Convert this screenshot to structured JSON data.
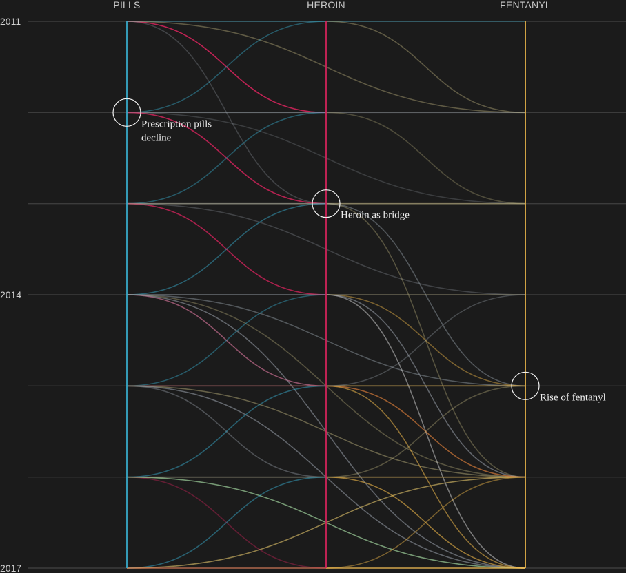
{
  "colors": {
    "background": "#1b1b1b",
    "grid": "#3c3c3c",
    "pills": "#37a8c8",
    "heroin": "#d0245a",
    "fentanyl": "#efb84a",
    "neutral": "#9aa3ad"
  },
  "chart_data": {
    "type": "line",
    "title": "",
    "xlabel": "",
    "ylabel": "",
    "columns": [
      "PILLS",
      "HEROIN",
      "FENTANYL"
    ],
    "years": [
      2011,
      2012,
      2013,
      2014,
      2015,
      2016,
      2017
    ],
    "year_tick_labels": [
      "2011",
      "",
      "",
      "2014",
      "",
      "",
      "2017"
    ],
    "ylim": [
      2011,
      2017
    ],
    "series": [
      {
        "from": "PILLS",
        "from_year": 2011,
        "to": "HEROIN",
        "to_year": 2012,
        "color": "#d0245a",
        "opacity": 0.8
      },
      {
        "from": "PILLS",
        "from_year": 2011,
        "to": "HEROIN",
        "to_year": 2012,
        "color": "#d0245a",
        "opacity": 0.5
      },
      {
        "from": "PILLS",
        "from_year": 2011,
        "to": "FENTANYL",
        "to_year": 2011,
        "color": "#37a8c8",
        "opacity": 0.45
      },
      {
        "from": "PILLS",
        "from_year": 2011,
        "to": "FENTANYL",
        "to_year": 2012,
        "color": "#b3a978",
        "opacity": 0.45
      },
      {
        "from": "PILLS",
        "from_year": 2011,
        "to": "HEROIN",
        "to_year": 2013,
        "color": "#9aa3ad",
        "opacity": 0.3
      },
      {
        "from": "PILLS",
        "from_year": 2012,
        "to": "HEROIN",
        "to_year": 2011,
        "color": "#37a8c8",
        "opacity": 0.45
      },
      {
        "from": "PILLS",
        "from_year": 2012,
        "to": "HEROIN",
        "to_year": 2012,
        "color": "#9aa3ad",
        "opacity": 0.45
      },
      {
        "from": "PILLS",
        "from_year": 2012,
        "to": "HEROIN",
        "to_year": 2013,
        "color": "#d0245a",
        "opacity": 0.7
      },
      {
        "from": "PILLS",
        "from_year": 2012,
        "to": "HEROIN",
        "to_year": 2013,
        "color": "#d0245a",
        "opacity": 0.45
      },
      {
        "from": "PILLS",
        "from_year": 2012,
        "to": "FENTANYL",
        "to_year": 2013,
        "color": "#9aa3ad",
        "opacity": 0.25
      },
      {
        "from": "PILLS",
        "from_year": 2013,
        "to": "HEROIN",
        "to_year": 2012,
        "color": "#37a8c8",
        "opacity": 0.45
      },
      {
        "from": "PILLS",
        "from_year": 2013,
        "to": "HEROIN",
        "to_year": 2013,
        "color": "#9aa3ad",
        "opacity": 0.45
      },
      {
        "from": "PILLS",
        "from_year": 2013,
        "to": "HEROIN",
        "to_year": 2014,
        "color": "#d0245a",
        "opacity": 0.65
      },
      {
        "from": "PILLS",
        "from_year": 2013,
        "to": "HEROIN",
        "to_year": 2014,
        "color": "#d0245a",
        "opacity": 0.4
      },
      {
        "from": "PILLS",
        "from_year": 2013,
        "to": "FENTANYL",
        "to_year": 2014,
        "color": "#9aa3ad",
        "opacity": 0.3
      },
      {
        "from": "PILLS",
        "from_year": 2013,
        "to": "FENTANYL",
        "to_year": 2013,
        "color": "#b3a978",
        "opacity": 0.3
      },
      {
        "from": "PILLS",
        "from_year": 2014,
        "to": "HEROIN",
        "to_year": 2013,
        "color": "#37a8c8",
        "opacity": 0.5
      },
      {
        "from": "PILLS",
        "from_year": 2014,
        "to": "HEROIN",
        "to_year": 2014,
        "color": "#9aa3ad",
        "opacity": 0.45
      },
      {
        "from": "PILLS",
        "from_year": 2014,
        "to": "HEROIN",
        "to_year": 2015,
        "color": "#d0245a",
        "opacity": 0.6
      },
      {
        "from": "PILLS",
        "from_year": 2014,
        "to": "HEROIN",
        "to_year": 2015,
        "color": "#9aa3ad",
        "opacity": 0.4
      },
      {
        "from": "PILLS",
        "from_year": 2014,
        "to": "FENTANYL",
        "to_year": 2015,
        "color": "#9aa3ad",
        "opacity": 0.45
      },
      {
        "from": "PILLS",
        "from_year": 2014,
        "to": "FENTANYL",
        "to_year": 2016,
        "color": "#b3a978",
        "opacity": 0.4
      },
      {
        "from": "PILLS",
        "from_year": 2014,
        "to": "FENTANYL",
        "to_year": 2017,
        "color": "#9aa3ad",
        "opacity": 0.55
      },
      {
        "from": "PILLS",
        "from_year": 2015,
        "to": "HEROIN",
        "to_year": 2014,
        "color": "#37a8c8",
        "opacity": 0.45
      },
      {
        "from": "PILLS",
        "from_year": 2015,
        "to": "HEROIN",
        "to_year": 2015,
        "color": "#d0245a",
        "opacity": 0.45
      },
      {
        "from": "PILLS",
        "from_year": 2015,
        "to": "HEROIN",
        "to_year": 2016,
        "color": "#9aa3ad",
        "opacity": 0.4
      },
      {
        "from": "PILLS",
        "from_year": 2015,
        "to": "FENTANYL",
        "to_year": 2016,
        "color": "#b3a978",
        "opacity": 0.5
      },
      {
        "from": "PILLS",
        "from_year": 2015,
        "to": "FENTANYL",
        "to_year": 2017,
        "color": "#9aa3ad",
        "opacity": 0.55
      },
      {
        "from": "PILLS",
        "from_year": 2015,
        "to": "FENTANYL",
        "to_year": 2015,
        "color": "#b3a978",
        "opacity": 0.35
      },
      {
        "from": "PILLS",
        "from_year": 2016,
        "to": "HEROIN",
        "to_year": 2015,
        "color": "#37a8c8",
        "opacity": 0.5
      },
      {
        "from": "PILLS",
        "from_year": 2016,
        "to": "HEROIN",
        "to_year": 2016,
        "color": "#9aa3ad",
        "opacity": 0.35
      },
      {
        "from": "PILLS",
        "from_year": 2016,
        "to": "HEROIN",
        "to_year": 2017,
        "color": "#d0245a",
        "opacity": 0.4
      },
      {
        "from": "PILLS",
        "from_year": 2016,
        "to": "FENTANYL",
        "to_year": 2017,
        "color": "#9ccf9a",
        "opacity": 0.7
      },
      {
        "from": "PILLS",
        "from_year": 2016,
        "to": "FENTANYL",
        "to_year": 2016,
        "color": "#b3a978",
        "opacity": 0.4
      },
      {
        "from": "PILLS",
        "from_year": 2017,
        "to": "HEROIN",
        "to_year": 2016,
        "color": "#37a8c8",
        "opacity": 0.5
      },
      {
        "from": "PILLS",
        "from_year": 2017,
        "to": "FENTANYL",
        "to_year": 2016,
        "color": "#e2c46a",
        "opacity": 0.6
      },
      {
        "from": "PILLS",
        "from_year": 2017,
        "to": "FENTANYL",
        "to_year": 2017,
        "color": "#efb84a",
        "opacity": 0.5
      },
      {
        "from": "PILLS",
        "from_year": 2017,
        "to": "HEROIN",
        "to_year": 2017,
        "color": "#d0245a",
        "opacity": 0.3
      },
      {
        "from": "HEROIN",
        "from_year": 2011,
        "to": "FENTANYL",
        "to_year": 2012,
        "color": "#b3a978",
        "opacity": 0.45
      },
      {
        "from": "HEROIN",
        "from_year": 2012,
        "to": "FENTANYL",
        "to_year": 2012,
        "color": "#9aa3ad",
        "opacity": 0.35
      },
      {
        "from": "HEROIN",
        "from_year": 2012,
        "to": "FENTANYL",
        "to_year": 2013,
        "color": "#b3a978",
        "opacity": 0.35
      },
      {
        "from": "HEROIN",
        "from_year": 2013,
        "to": "FENTANYL",
        "to_year": 2013,
        "color": "#b3a978",
        "opacity": 0.45
      },
      {
        "from": "HEROIN",
        "from_year": 2013,
        "to": "FENTANYL",
        "to_year": 2015,
        "color": "#9aa3ad",
        "opacity": 0.45
      },
      {
        "from": "HEROIN",
        "from_year": 2013,
        "to": "FENTANYL",
        "to_year": 2016,
        "color": "#b3a978",
        "opacity": 0.4
      },
      {
        "from": "HEROIN",
        "from_year": 2014,
        "to": "FENTANYL",
        "to_year": 2015,
        "color": "#efb84a",
        "opacity": 0.45
      },
      {
        "from": "HEROIN",
        "from_year": 2014,
        "to": "FENTANYL",
        "to_year": 2016,
        "color": "#9aa3ad",
        "opacity": 0.55
      },
      {
        "from": "HEROIN",
        "from_year": 2014,
        "to": "FENTANYL",
        "to_year": 2017,
        "color": "#c7c7c7",
        "opacity": 0.55
      },
      {
        "from": "HEROIN",
        "from_year": 2014,
        "to": "FENTANYL",
        "to_year": 2014,
        "color": "#b3a978",
        "opacity": 0.35
      },
      {
        "from": "HEROIN",
        "from_year": 2015,
        "to": "FENTANYL",
        "to_year": 2015,
        "color": "#efb84a",
        "opacity": 0.55
      },
      {
        "from": "HEROIN",
        "from_year": 2015,
        "to": "FENTANYL",
        "to_year": 2016,
        "color": "#f0883e",
        "opacity": 0.6
      },
      {
        "from": "HEROIN",
        "from_year": 2015,
        "to": "FENTANYL",
        "to_year": 2017,
        "color": "#efb84a",
        "opacity": 0.55
      },
      {
        "from": "HEROIN",
        "from_year": 2015,
        "to": "FENTANYL",
        "to_year": 2014,
        "color": "#9aa3ad",
        "opacity": 0.35
      },
      {
        "from": "HEROIN",
        "from_year": 2016,
        "to": "FENTANYL",
        "to_year": 2016,
        "color": "#efb84a",
        "opacity": 0.5
      },
      {
        "from": "HEROIN",
        "from_year": 2016,
        "to": "FENTANYL",
        "to_year": 2017,
        "color": "#efb84a",
        "opacity": 0.6
      },
      {
        "from": "HEROIN",
        "from_year": 2016,
        "to": "FENTANYL",
        "to_year": 2015,
        "color": "#b3a978",
        "opacity": 0.4
      },
      {
        "from": "HEROIN",
        "from_year": 2017,
        "to": "FENTANYL",
        "to_year": 2016,
        "color": "#efb84a",
        "opacity": 0.45
      },
      {
        "from": "HEROIN",
        "from_year": 2017,
        "to": "FENTANYL",
        "to_year": 2017,
        "color": "#efb84a",
        "opacity": 0.55
      }
    ],
    "annotations": [
      {
        "column": "PILLS",
        "year": 2012,
        "lines": [
          "Prescription pills",
          "decline"
        ]
      },
      {
        "column": "HEROIN",
        "year": 2013,
        "lines": [
          "Heroin as bridge"
        ]
      },
      {
        "column": "FENTANYL",
        "year": 2015,
        "lines": [
          "Rise of fentanyl"
        ]
      }
    ]
  }
}
